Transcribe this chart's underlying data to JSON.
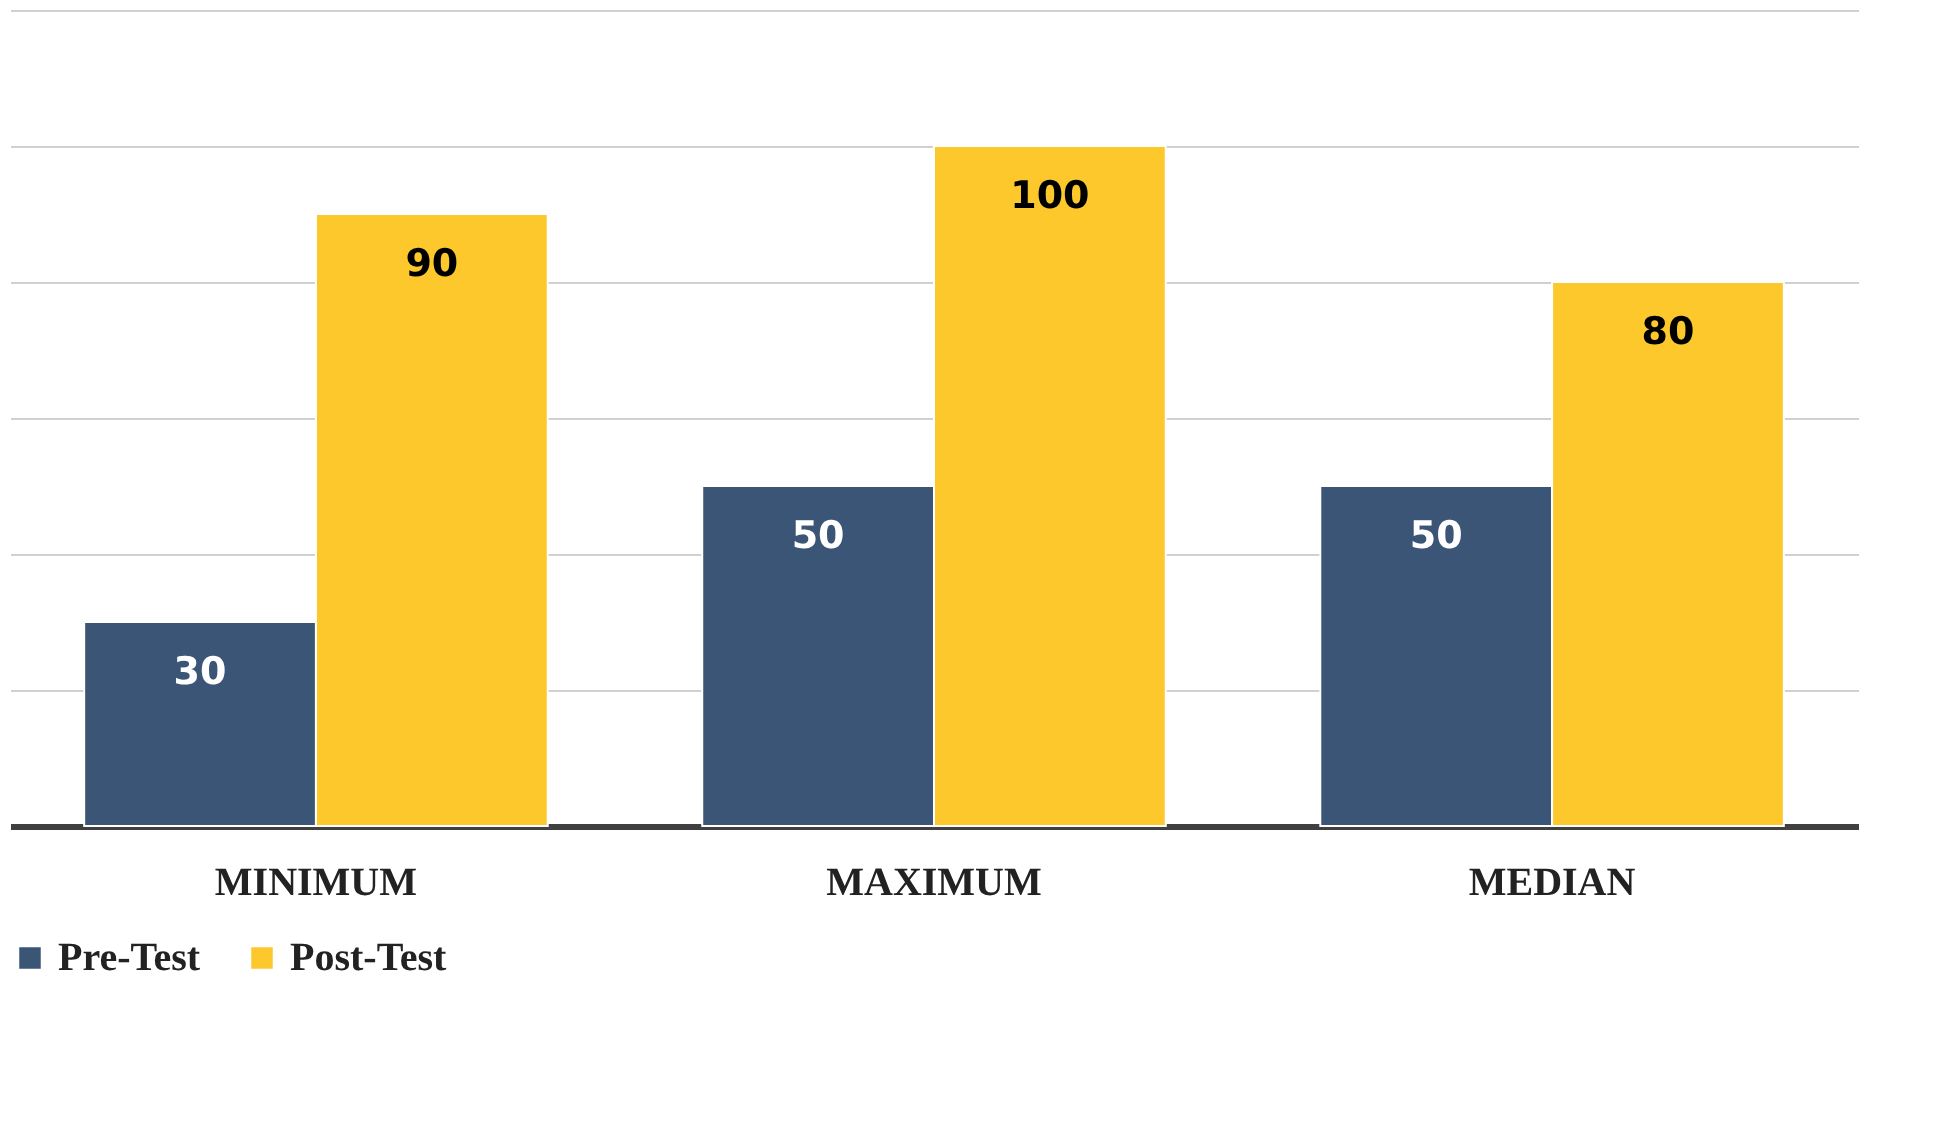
{
  "chart_data": {
    "type": "bar",
    "categories": [
      "MINIMUM",
      "MAXIMUM",
      "MEDIAN"
    ],
    "series": [
      {
        "name": "Pre-Test",
        "color": "#3b5576",
        "values": [
          30,
          50,
          50
        ]
      },
      {
        "name": "Post-Test",
        "color": "#fdc82c",
        "values": [
          90,
          100,
          80
        ]
      }
    ],
    "ylim": [
      0,
      120
    ],
    "yticks": [
      {
        "value": 0,
        "label": null
      },
      {
        "value": 20,
        "label": null
      },
      {
        "value": 40,
        "label": null
      },
      {
        "value": 60,
        "label": null
      },
      {
        "value": 80,
        "label": null
      },
      {
        "value": 100,
        "label": null
      },
      {
        "value": 120,
        "label": null
      }
    ],
    "tick_labels": "x",
    "grid": "y",
    "legend": "bottom",
    "data_labels": true
  }
}
